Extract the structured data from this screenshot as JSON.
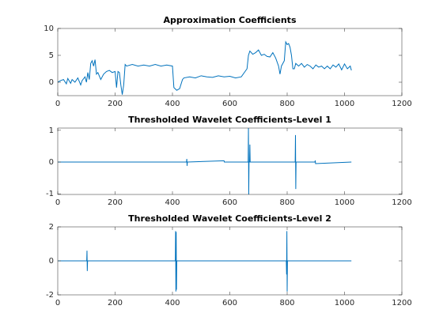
{
  "chart_data": [
    {
      "type": "line",
      "title": "Approximation Coefficients",
      "color": "#0072bd",
      "x": [
        0,
        10,
        20,
        30,
        35,
        45,
        50,
        60,
        70,
        80,
        85,
        95,
        100,
        105,
        110,
        115,
        120,
        125,
        130,
        135,
        140,
        150,
        160,
        170,
        180,
        190,
        200,
        205,
        210,
        215,
        220,
        225,
        230,
        235,
        240,
        260,
        280,
        300,
        320,
        340,
        360,
        380,
        400,
        405,
        415,
        425,
        435,
        440,
        460,
        480,
        500,
        520,
        540,
        560,
        580,
        600,
        620,
        640,
        660,
        665,
        670,
        680,
        690,
        700,
        710,
        720,
        730,
        740,
        750,
        760,
        770,
        775,
        780,
        790,
        795,
        800,
        805,
        810,
        815,
        820,
        825,
        830,
        840,
        850,
        860,
        870,
        880,
        890,
        900,
        910,
        920,
        930,
        940,
        950,
        960,
        970,
        980,
        990,
        1000,
        1010,
        1020,
        1024
      ],
      "values": [
        0,
        0.3,
        0.5,
        -0.3,
        0.7,
        -0.2,
        0.5,
        0,
        0.8,
        -0.5,
        0.3,
        1,
        0,
        1.8,
        0.5,
        3.5,
        4,
        3,
        4.2,
        1.5,
        1.8,
        0.5,
        1.5,
        2,
        2.2,
        1.8,
        2,
        -1,
        2,
        1.8,
        -0.5,
        -2.3,
        -0.5,
        3.3,
        3,
        3.3,
        3,
        3.2,
        3,
        3.3,
        3,
        3.2,
        3,
        -1,
        -1.5,
        -1.2,
        0.5,
        0.8,
        1,
        0.8,
        1.2,
        1,
        0.9,
        1.2,
        1,
        1.1,
        0.8,
        1,
        2.5,
        5,
        5.8,
        5.2,
        5.5,
        6,
        5,
        5.2,
        4.8,
        4.7,
        5.5,
        4.5,
        3,
        1.5,
        3,
        4,
        7.5,
        7,
        7.2,
        6.5,
        5,
        2.5,
        2.5,
        3.5,
        3,
        3.5,
        2.8,
        3.3,
        3,
        2.5,
        3.2,
        2.8,
        3,
        2.5,
        3,
        2.5,
        3.2,
        2.8,
        3.4,
        2.3,
        3.4,
        2.5,
        3,
        2.2
      ],
      "xlim": [
        0,
        1200
      ],
      "xticks": [
        0,
        200,
        400,
        600,
        800,
        1000,
        1200
      ],
      "ylim": [
        -2.5,
        10
      ],
      "yticks": [
        0,
        5,
        10
      ]
    },
    {
      "type": "line",
      "title": "Thresholded Wavelet Coefficients-Level 1",
      "color": "#0072bd",
      "x": [
        1,
        449,
        450,
        451,
        452,
        580,
        581,
        664,
        665,
        666,
        667,
        669,
        670,
        671,
        828,
        829,
        830,
        831,
        897,
        898,
        899,
        1024
      ],
      "values": [
        0,
        0,
        0.1,
        -0.12,
        0,
        0.04,
        0,
        0,
        1.07,
        -1.02,
        0,
        0,
        0.55,
        0,
        0,
        0.85,
        -0.85,
        0,
        0,
        0.05,
        -0.05,
        0
      ],
      "xlim": [
        0,
        1200
      ],
      "xticks": [
        0,
        200,
        400,
        600,
        800,
        1000,
        1200
      ],
      "ylim": [
        -1.02,
        1.07
      ],
      "yticks": [
        -1,
        0,
        1
      ]
    },
    {
      "type": "line",
      "title": "Thresholded Wavelet Coefficients-Level 2",
      "color": "#0072bd",
      "x": [
        1,
        101,
        102,
        103,
        104,
        410,
        411,
        412,
        413,
        414,
        415,
        797,
        798,
        799,
        800,
        801,
        1024
      ],
      "values": [
        0,
        0,
        0.6,
        -0.6,
        0,
        0,
        1.75,
        -1.8,
        1.7,
        -1.7,
        0,
        0,
        -0.8,
        1.75,
        -1.8,
        0,
        0
      ],
      "xlim": [
        0,
        1200
      ],
      "xticks": [
        0,
        200,
        400,
        600,
        800,
        1000,
        1200
      ],
      "ylim": [
        -2,
        2
      ],
      "yticks": [
        -2,
        0,
        2
      ]
    }
  ]
}
